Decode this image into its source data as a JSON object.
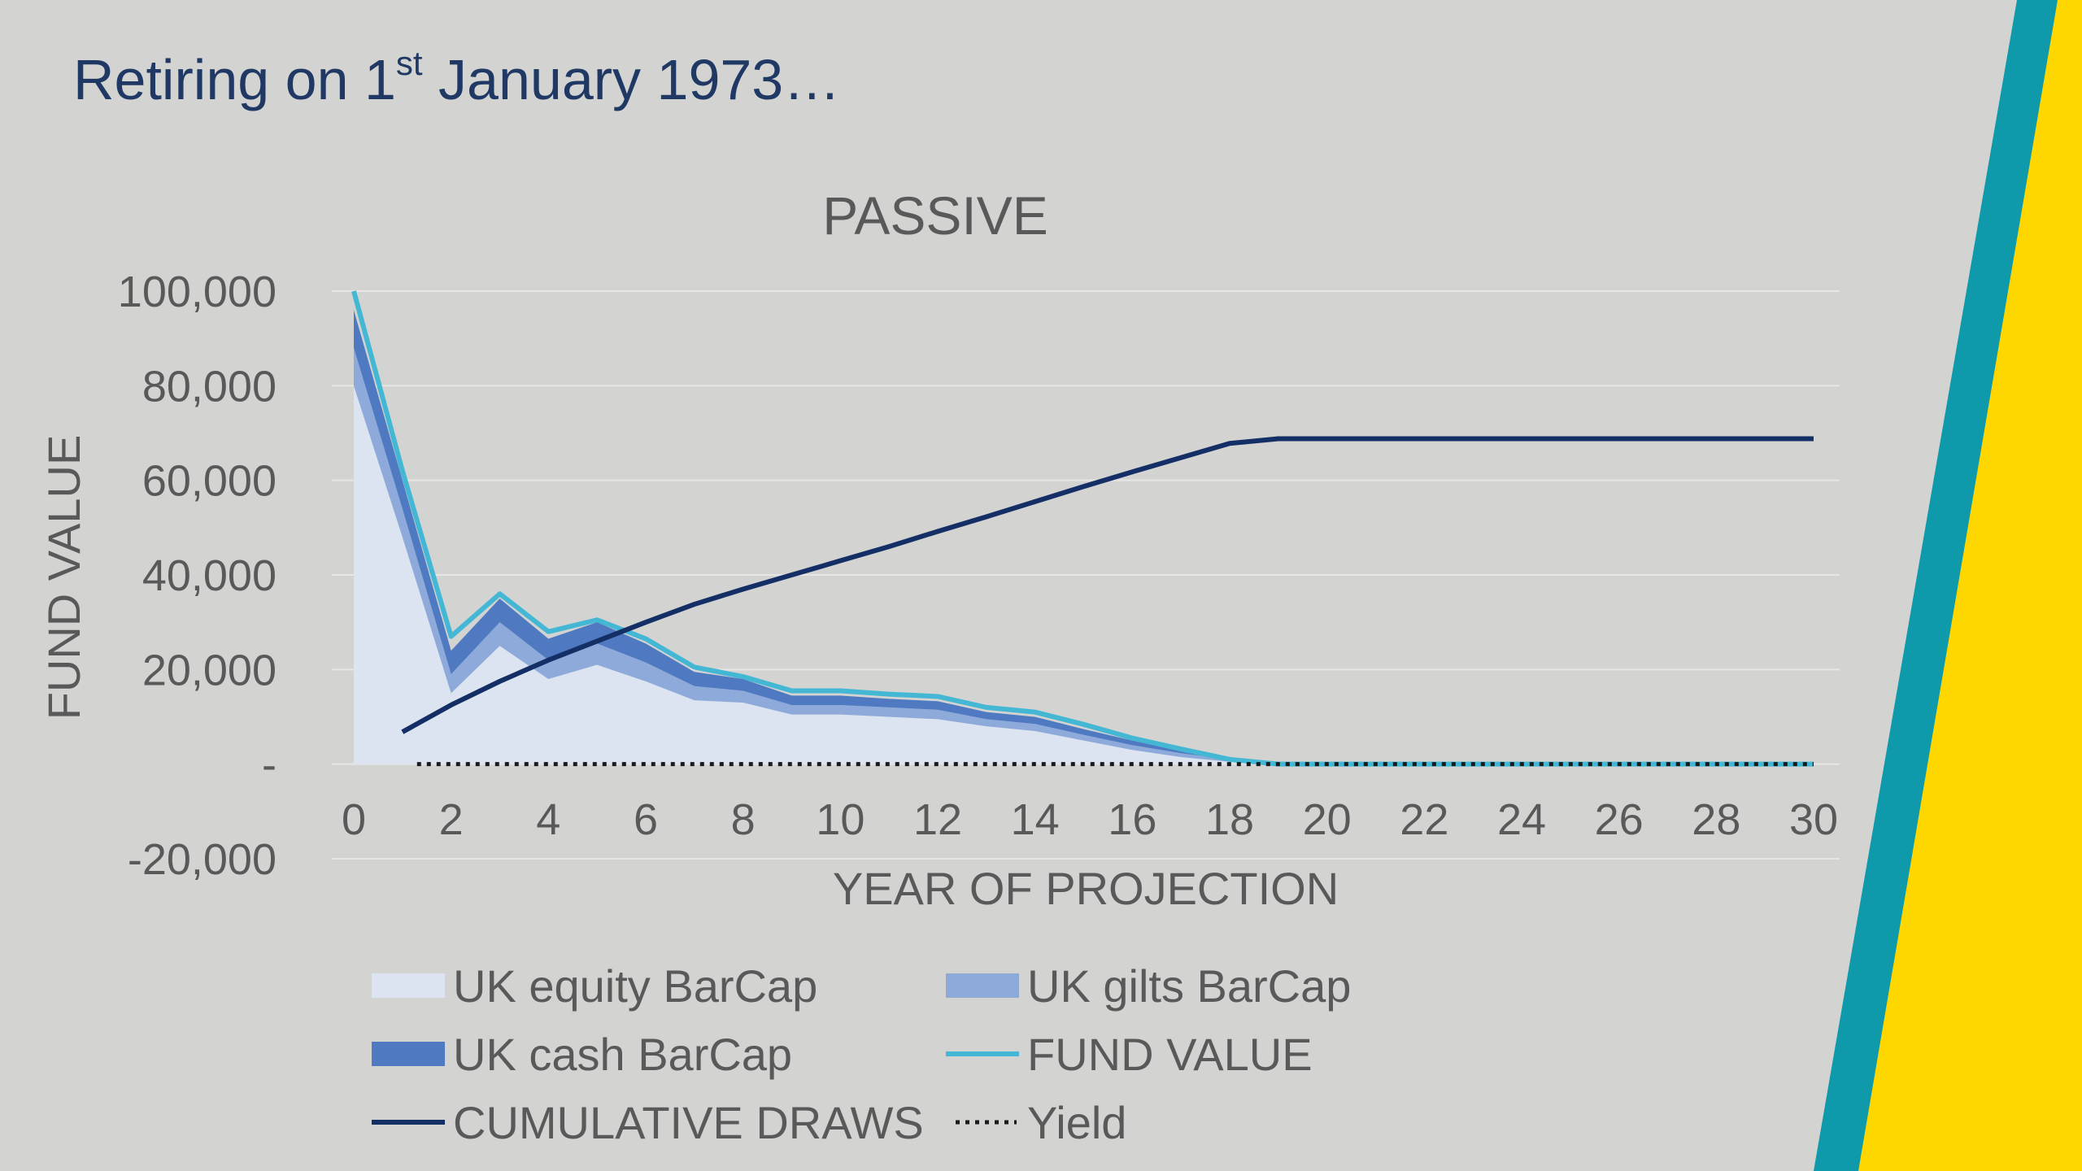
{
  "slide": {
    "title_main": "Retiring on 1",
    "title_sup": "st",
    "title_rest": " January 1973…"
  },
  "colors": {
    "background": "#d3d3d2",
    "title": "#1f3864",
    "teal_stripe": "#0e9aab",
    "yellow_stripe": "#ffd700",
    "equity": "#dbe4f0",
    "gilts": "#8eaadb",
    "cash": "#4f7ac2",
    "fund_value": "#44b7d4",
    "cumulative": "#142f66",
    "yield": "#1a1a1a"
  },
  "chart_data": {
    "type": "area",
    "title": "PASSIVE",
    "xlabel": "YEAR OF PROJECTION",
    "ylabel": "FUND VALUE",
    "xlim": [
      0,
      30
    ],
    "ylim": [
      -20000,
      100000
    ],
    "xticks": [
      "0",
      "2",
      "4",
      "6",
      "8",
      "10",
      "12",
      "14",
      "16",
      "18",
      "20",
      "22",
      "24",
      "26",
      "28",
      "30"
    ],
    "yticks": [
      {
        "value": 100000,
        "label": "100,000"
      },
      {
        "value": 80000,
        "label": "80,000"
      },
      {
        "value": 60000,
        "label": "60,000"
      },
      {
        "value": 40000,
        "label": "40,000"
      },
      {
        "value": 20000,
        "label": "20,000"
      },
      {
        "value": 0,
        "label": "-"
      },
      {
        "value": -20000,
        "label": "-20,000"
      }
    ],
    "grid": true,
    "legend_position": "bottom",
    "x": [
      0,
      1,
      2,
      3,
      4,
      5,
      6,
      7,
      8,
      9,
      10,
      11,
      12,
      13,
      14,
      15,
      16,
      17,
      18,
      19,
      20,
      21,
      22,
      23,
      24,
      25,
      26,
      27,
      28,
      29,
      30
    ],
    "series": [
      {
        "name": "UK equity BarCap",
        "kind": "stacked-area",
        "color_key": "equity",
        "values": [
          80000,
          48000,
          15000,
          25000,
          18000,
          21000,
          17500,
          13500,
          13000,
          10500,
          10500,
          10000,
          9500,
          8000,
          7000,
          5000,
          3000,
          1500,
          500,
          0,
          0,
          0,
          0,
          0,
          0,
          0,
          0,
          0,
          0,
          0,
          0
        ]
      },
      {
        "name": "UK gilts BarCap",
        "kind": "stacked-area",
        "color_key": "gilts",
        "values": [
          8000,
          6000,
          4000,
          5000,
          4000,
          4500,
          4000,
          3000,
          2500,
          2000,
          2000,
          2000,
          2000,
          1500,
          1500,
          1200,
          1000,
          800,
          500,
          0,
          0,
          0,
          0,
          0,
          0,
          0,
          0,
          0,
          0,
          0,
          0
        ]
      },
      {
        "name": "UK cash BarCap",
        "kind": "stacked-area",
        "color_key": "cash",
        "values": [
          8000,
          6000,
          5000,
          5000,
          4500,
          4500,
          4000,
          3000,
          2500,
          2000,
          2000,
          1800,
          1800,
          1500,
          1500,
          1200,
          1000,
          700,
          300,
          0,
          0,
          0,
          0,
          0,
          0,
          0,
          0,
          0,
          0,
          0,
          0
        ]
      },
      {
        "name": "FUND VALUE",
        "kind": "line",
        "color_key": "fund_value",
        "values": [
          100000,
          62000,
          27000,
          36000,
          28000,
          30500,
          26500,
          20500,
          18500,
          15500,
          15500,
          14800,
          14300,
          12000,
          11000,
          8400,
          5500,
          3200,
          1000,
          0,
          0,
          0,
          0,
          0,
          0,
          0,
          0,
          0,
          0,
          0,
          0
        ]
      },
      {
        "name": "CUMULATIVE DRAWS",
        "kind": "line",
        "color_key": "cumulative",
        "x": [
          1,
          2,
          3,
          4,
          5,
          6,
          7,
          8,
          9,
          10,
          11,
          12,
          13,
          14,
          15,
          16,
          17,
          18,
          19,
          20,
          21,
          22,
          23,
          24,
          25,
          26,
          27,
          28,
          29,
          30
        ],
        "values": [
          6800,
          12500,
          17500,
          22000,
          26000,
          30000,
          33800,
          37000,
          40000,
          43000,
          46000,
          49200,
          52300,
          55500,
          58700,
          61800,
          64800,
          67800,
          68800,
          68800,
          68800,
          68800,
          68800,
          68800,
          68800,
          68800,
          68800,
          68800,
          68800,
          68800
        ]
      },
      {
        "name": "Yield",
        "kind": "dotted-line",
        "color_key": "yield",
        "x": [
          1.3,
          30
        ],
        "values": [
          0,
          0
        ]
      }
    ],
    "legend": [
      {
        "label": "UK equity BarCap",
        "swatch": "area",
        "color_key": "equity"
      },
      {
        "label": "UK gilts BarCap",
        "swatch": "area",
        "color_key": "gilts"
      },
      {
        "label": "UK cash BarCap",
        "swatch": "area",
        "color_key": "cash"
      },
      {
        "label": "FUND VALUE",
        "swatch": "line",
        "color_key": "fund_value"
      },
      {
        "label": "CUMULATIVE DRAWS",
        "swatch": "line",
        "color_key": "cumulative"
      },
      {
        "label": "Yield",
        "swatch": "dotted",
        "color_key": "yield"
      }
    ]
  }
}
